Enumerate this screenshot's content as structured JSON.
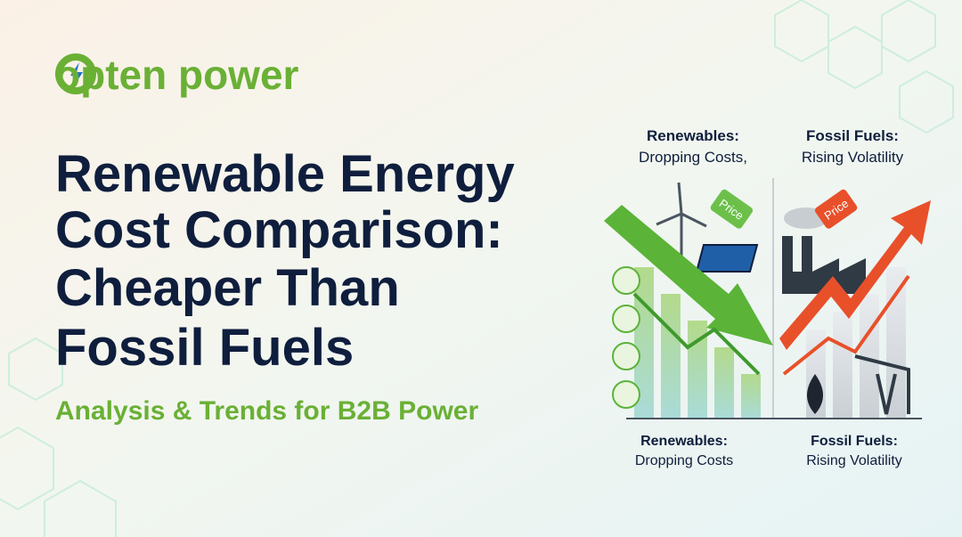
{
  "logo": "opten power",
  "title": [
    "Renewable Energy",
    "Cost Comparison:",
    "Cheaper Than",
    "Fossil Fuels"
  ],
  "subtitle": "Analysis & Trends for B2B Power",
  "illustration": {
    "top_left": {
      "heading": "Renewables:",
      "text": "Dropping Costs,"
    },
    "top_right": {
      "heading": "Fossil Fuels:",
      "text": "Rising Volatility"
    },
    "bottom_left": {
      "heading": "Renewables:",
      "text": "Dropping Costs"
    },
    "bottom_right": {
      "heading": "Fossil Fuels:",
      "text": "Rising Volatility"
    },
    "tags": [
      "Price",
      "Price"
    ]
  }
}
